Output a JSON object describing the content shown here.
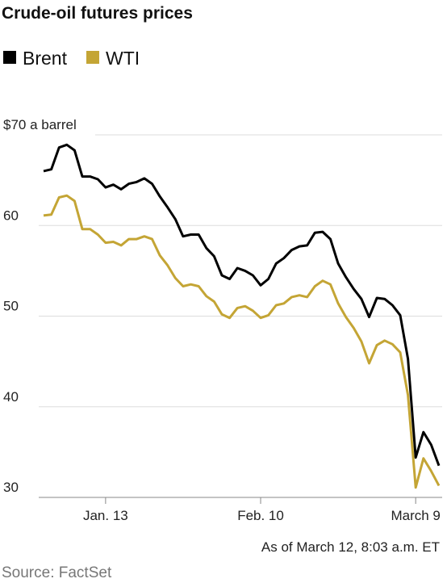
{
  "chart_data": {
    "type": "line",
    "title": "Crude-oil futures prices",
    "x": [
      "Dec. 31",
      "Jan. 2",
      "Jan. 3",
      "Jan. 6",
      "Jan. 7",
      "Jan. 8",
      "Jan. 9",
      "Jan. 10",
      "Jan. 13",
      "Jan. 14",
      "Jan. 15",
      "Jan. 16",
      "Jan. 17",
      "Jan. 20",
      "Jan. 21",
      "Jan. 22",
      "Jan. 23",
      "Jan. 24",
      "Jan. 27",
      "Jan. 28",
      "Jan. 29",
      "Jan. 30",
      "Jan. 31",
      "Feb. 3",
      "Feb. 4",
      "Feb. 5",
      "Feb. 6",
      "Feb. 7",
      "Feb. 10",
      "Feb. 11",
      "Feb. 12",
      "Feb. 13",
      "Feb. 14",
      "Feb. 17",
      "Feb. 18",
      "Feb. 19",
      "Feb. 20",
      "Feb. 21",
      "Feb. 24",
      "Feb. 25",
      "Feb. 26",
      "Feb. 27",
      "Feb. 28",
      "March 2",
      "March 3",
      "March 4",
      "March 5",
      "March 6",
      "March 9",
      "March 10",
      "March 11",
      "March 12"
    ],
    "series": [
      {
        "name": "Brent",
        "color": "#000000",
        "values": [
          66.0,
          66.2,
          68.6,
          68.9,
          68.3,
          65.4,
          65.4,
          65.1,
          64.2,
          64.5,
          64.0,
          64.6,
          64.8,
          65.2,
          64.6,
          63.2,
          62.0,
          60.7,
          58.8,
          59.0,
          59.0,
          57.5,
          56.6,
          54.5,
          54.1,
          55.3,
          55.0,
          54.5,
          53.4,
          54.1,
          55.8,
          56.4,
          57.3,
          57.7,
          57.8,
          59.2,
          59.3,
          58.5,
          55.8,
          54.3,
          53.0,
          51.9,
          49.9,
          52.0,
          51.9,
          51.2,
          50.1,
          45.3,
          34.4,
          37.2,
          35.8,
          33.5
        ]
      },
      {
        "name": "WTI",
        "color": "#c4a535",
        "values": [
          61.1,
          61.2,
          63.1,
          63.3,
          62.7,
          59.6,
          59.6,
          59.0,
          58.1,
          58.2,
          57.8,
          58.5,
          58.5,
          58.8,
          58.5,
          56.7,
          55.6,
          54.2,
          53.3,
          53.5,
          53.3,
          52.2,
          51.6,
          50.2,
          49.8,
          50.9,
          51.1,
          50.6,
          49.8,
          50.1,
          51.2,
          51.4,
          52.1,
          52.3,
          52.1,
          53.3,
          53.9,
          53.5,
          51.4,
          49.9,
          48.7,
          47.2,
          44.8,
          46.8,
          47.3,
          46.9,
          46.0,
          41.3,
          31.1,
          34.3,
          32.9,
          31.3
        ]
      }
    ],
    "ylim": [
      30,
      70
    ],
    "yticks": [
      30,
      40,
      50,
      60,
      {
        "value": 70,
        "label": "$70 a barrel"
      }
    ],
    "xticks": [
      "Jan. 13",
      "Feb. 10",
      "March 9"
    ],
    "grid": true,
    "note": "As of March 12, 8:03 a.m. ET",
    "source": "Source: FactSet"
  }
}
